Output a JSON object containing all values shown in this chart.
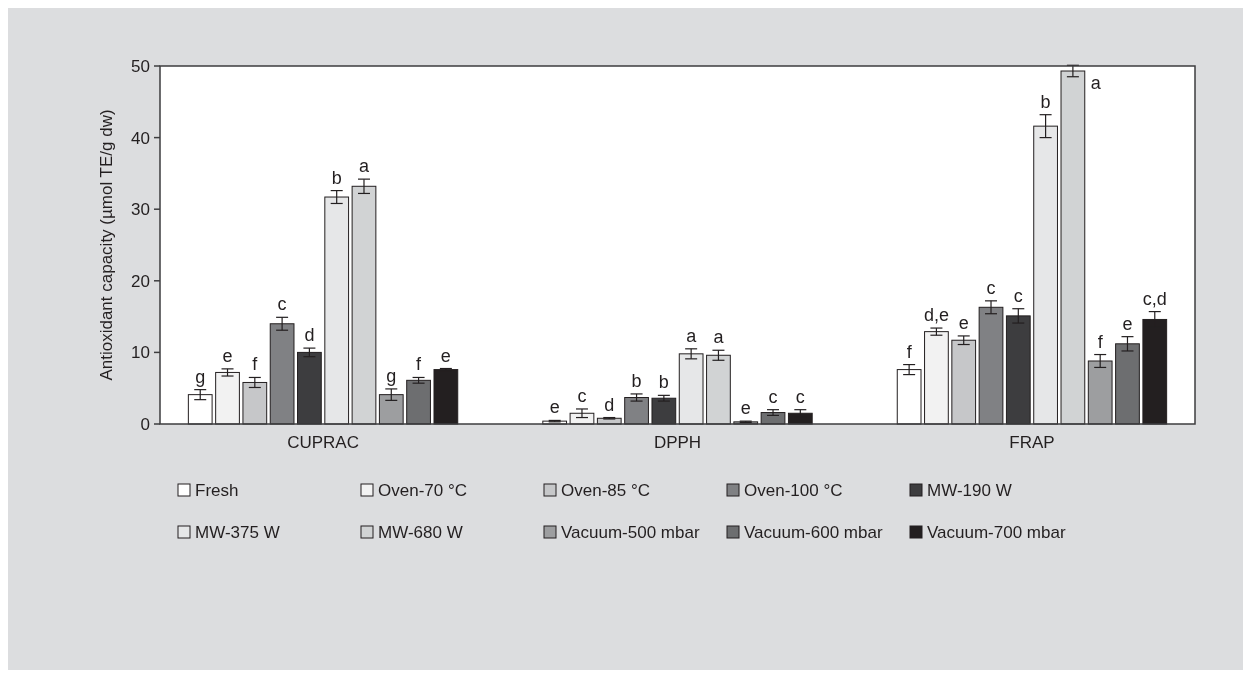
{
  "chart_data": {
    "type": "bar",
    "ylabel": "Antioxidant capacity (µmol TE/g dw)",
    "categories": [
      "CUPRAC",
      "DPPH",
      "FRAP"
    ],
    "ylim": [
      0,
      50
    ],
    "yticks": [
      0,
      10,
      20,
      30,
      40,
      50
    ],
    "grid": false,
    "legend": "bottom",
    "series": [
      {
        "name": "Fresh",
        "color": "#ffffff",
        "values": [
          4.1,
          0.4,
          7.6
        ],
        "errors": [
          0.7,
          0.1,
          0.7
        ],
        "value_labels": [
          "g",
          "e",
          "f"
        ]
      },
      {
        "name": "Oven-70 °C",
        "color": "#f2f2f2",
        "values": [
          7.2,
          1.5,
          12.9
        ],
        "errors": [
          0.5,
          0.6,
          0.5
        ],
        "value_labels": [
          "e",
          "c",
          "d,e"
        ]
      },
      {
        "name": "Oven-85 °C",
        "color": "#c6c7c9",
        "values": [
          5.8,
          0.8,
          11.7
        ],
        "errors": [
          0.7,
          0.1,
          0.6
        ],
        "value_labels": [
          "f",
          "d",
          "e"
        ]
      },
      {
        "name": "Oven-100 °C",
        "color": "#808184",
        "values": [
          14.0,
          3.7,
          16.3
        ],
        "errors": [
          0.9,
          0.5,
          0.9
        ],
        "value_labels": [
          "c",
          "b",
          "c"
        ]
      },
      {
        "name": "MW-190 W",
        "color": "#3d3d3f",
        "values": [
          10.0,
          3.6,
          15.1
        ],
        "errors": [
          0.6,
          0.4,
          1.0
        ],
        "value_labels": [
          "d",
          "b",
          "c"
        ]
      },
      {
        "name": "MW-375 W",
        "color": "#e6e7e8",
        "values": [
          31.7,
          9.8,
          41.6
        ],
        "errors": [
          0.9,
          0.7,
          1.6
        ],
        "value_labels": [
          "b",
          "a",
          "b"
        ]
      },
      {
        "name": "MW-680 W",
        "color": "#d1d3d4",
        "values": [
          33.2,
          9.6,
          49.3
        ],
        "errors": [
          1.0,
          0.7,
          0.8
        ],
        "value_labels": [
          "a",
          "a",
          "a"
        ]
      },
      {
        "name": "Vacuum-500 mbar",
        "color": "#9d9ea0",
        "values": [
          4.1,
          0.3,
          8.8
        ],
        "errors": [
          0.8,
          0.1,
          0.9
        ],
        "value_labels": [
          "g",
          "e",
          "f"
        ]
      },
      {
        "name": "Vacuum-600 mbar",
        "color": "#6d6e70",
        "values": [
          6.1,
          1.6,
          11.2
        ],
        "errors": [
          0.4,
          0.4,
          1.0
        ],
        "value_labels": [
          "f",
          "c",
          "e"
        ]
      },
      {
        "name": "Vacuum-700 mbar",
        "color": "#231f20",
        "values": [
          7.6,
          1.5,
          14.6
        ],
        "errors": [
          0.15,
          0.5,
          1.1
        ],
        "value_labels": [
          "e",
          "c",
          "c,d"
        ]
      }
    ]
  }
}
